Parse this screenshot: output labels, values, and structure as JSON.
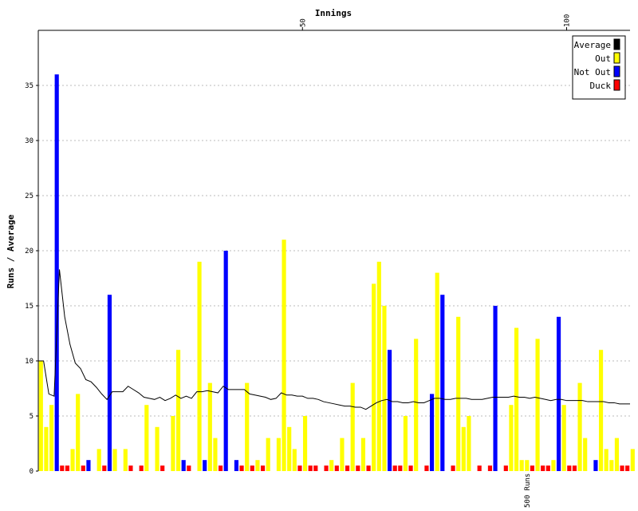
{
  "chart_data": {
    "type": "bar",
    "xlabel": "Innings",
    "ylabel": "Runs / Average",
    "xlim": [
      0,
      112
    ],
    "ylim": [
      0,
      40
    ],
    "x_ticks": [
      "50",
      "100"
    ],
    "y_ticks": [
      "0",
      "5",
      "10",
      "15",
      "20",
      "25",
      "30",
      "35"
    ],
    "grid": true,
    "legend_position": "top-right",
    "milestone": {
      "label": "500 Runs",
      "innings": 93
    },
    "legend": [
      {
        "label": "Average",
        "color": "#000000"
      },
      {
        "label": "Out",
        "color": "#ffff00"
      },
      {
        "label": "Not Out",
        "color": "#0000ff"
      },
      {
        "label": "Duck",
        "color": "#ff0000"
      }
    ],
    "series": [
      {
        "name": "Runs",
        "kind": "bar",
        "status": [
          "O",
          "O",
          "O",
          "N",
          "D",
          "D",
          "O",
          "O",
          "D",
          "N",
          "O",
          "O",
          "D",
          "N",
          "O",
          "N",
          "O",
          "D",
          "N",
          "D",
          "O",
          "O",
          "O",
          "D",
          "O",
          "O",
          "O",
          "N",
          "D",
          "O",
          "O",
          "N",
          "O",
          "O",
          "D",
          "N",
          "O",
          "N",
          "D",
          "O",
          "D",
          "O",
          "D",
          "O",
          "N",
          "O",
          "O",
          "O",
          "O",
          "D",
          "O",
          "D",
          "D",
          "O",
          "D",
          "O",
          "D",
          "O",
          "D",
          "O",
          "D",
          "O",
          "D",
          "O",
          "O",
          "O",
          "N",
          "D",
          "D",
          "O",
          "D",
          "O",
          "O",
          "D",
          "N",
          "O",
          "N",
          "O",
          "D",
          "O",
          "O",
          "O",
          "O",
          "D",
          "N",
          "D",
          "N",
          "O",
          "D",
          "O",
          "O",
          "O",
          "O",
          "D",
          "O",
          "D",
          "D",
          "O",
          "N",
          "O",
          "D",
          "D",
          "O",
          "O",
          "O",
          "N",
          "O",
          "O",
          "O",
          "O",
          "D",
          "D",
          "O"
        ],
        "values": [
          10,
          4,
          6,
          36,
          0,
          0,
          2,
          7,
          0,
          1,
          0,
          2,
          0,
          16,
          2,
          0,
          2,
          9,
          0,
          0,
          6,
          0,
          4,
          9,
          0,
          5,
          11,
          1,
          12,
          0,
          19,
          1,
          8,
          3,
          5,
          20,
          0,
          1,
          2,
          8,
          0,
          1,
          0,
          3,
          0,
          3,
          21,
          4,
          2,
          0,
          5,
          0,
          9,
          0,
          0,
          1,
          0,
          3,
          0,
          8,
          0,
          3,
          0,
          17,
          19,
          15,
          11,
          0,
          0,
          5,
          0,
          12,
          0,
          5,
          7,
          18,
          16,
          0,
          3,
          14,
          4,
          5,
          0,
          6,
          0,
          15,
          15,
          0,
          9,
          6,
          13,
          1,
          1,
          0,
          12,
          0,
          0,
          1,
          14,
          6,
          0,
          0,
          8,
          3,
          0,
          1,
          11,
          2,
          1,
          3,
          0,
          0,
          2
        ]
      },
      {
        "name": "Average",
        "kind": "line",
        "values": [
          10,
          10,
          7,
          6.8,
          18.3,
          14,
          11.5,
          9.8,
          9.3,
          8.3,
          8.1,
          7.6,
          7,
          6.5,
          7.2,
          7.2,
          7.2,
          7.7,
          7.4,
          7.1,
          6.7,
          6.6,
          6.5,
          6.7,
          6.4,
          6.6,
          6.9,
          6.6,
          6.8,
          6.6,
          7.2,
          7.2,
          7.3,
          7.2,
          7.1,
          7.7,
          7.4,
          7.4,
          7.4,
          7.4,
          7,
          6.9,
          6.8,
          6.7,
          6.5,
          6.6,
          7.1,
          6.9,
          6.9,
          6.8,
          6.8,
          6.6,
          6.6,
          6.5,
          6.3,
          6.2,
          6.1,
          6,
          5.9,
          5.9,
          5.8,
          5.8,
          5.6,
          5.9,
          6.2,
          6.4,
          6.5,
          6.3,
          6.3,
          6.2,
          6.2,
          6.3,
          6.2,
          6.2,
          6.4,
          6.6,
          6.6,
          6.5,
          6.5,
          6.6,
          6.6,
          6.6,
          6.5,
          6.5,
          6.5,
          6.6,
          6.7,
          6.7,
          6.7,
          6.7,
          6.8,
          6.7,
          6.7,
          6.6,
          6.7,
          6.6,
          6.5,
          6.4,
          6.5,
          6.5,
          6.4,
          6.4,
          6.4,
          6.4,
          6.3,
          6.3,
          6.3,
          6.3,
          6.2,
          6.2,
          6.1,
          6.1,
          6.1
        ]
      }
    ]
  }
}
